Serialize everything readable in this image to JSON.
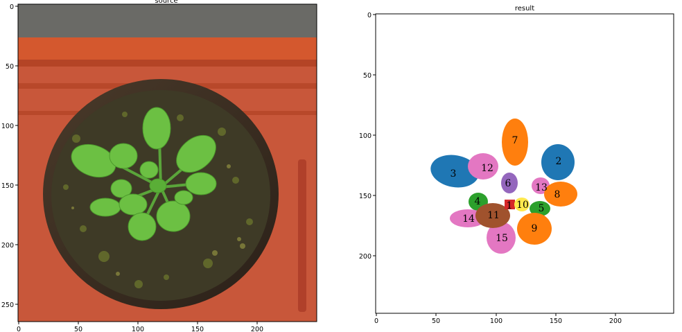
{
  "panels": {
    "source": {
      "title": "source",
      "x_ticks": [
        "0",
        "50",
        "100",
        "150",
        "200"
      ],
      "y_ticks": [
        "0",
        "50",
        "100",
        "150",
        "200",
        "250"
      ]
    },
    "result": {
      "title": "result",
      "x_ticks": [
        "0",
        "50",
        "100",
        "150",
        "200"
      ],
      "y_ticks": [
        "0",
        "50",
        "100",
        "150",
        "200"
      ]
    }
  },
  "leaves": [
    {
      "label": "1",
      "color": "#d62728"
    },
    {
      "label": "2",
      "color": "#1f77b4"
    },
    {
      "label": "3",
      "color": "#1f77b4"
    },
    {
      "label": "4",
      "color": "#2ca02c"
    },
    {
      "label": "5",
      "color": "#2ca02c"
    },
    {
      "label": "6",
      "color": "#9467bd"
    },
    {
      "label": "7",
      "color": "#ff7f0e"
    },
    {
      "label": "8",
      "color": "#ff7f0e"
    },
    {
      "label": "9",
      "color": "#ff7f0e"
    },
    {
      "label": "10",
      "color": "#ffe94d"
    },
    {
      "label": "11",
      "color": "#a0522d"
    },
    {
      "label": "12",
      "color": "#e377c2"
    },
    {
      "label": "13",
      "color": "#e377c2"
    },
    {
      "label": "14",
      "color": "#e377c2"
    },
    {
      "label": "15",
      "color": "#e377c2"
    }
  ]
}
